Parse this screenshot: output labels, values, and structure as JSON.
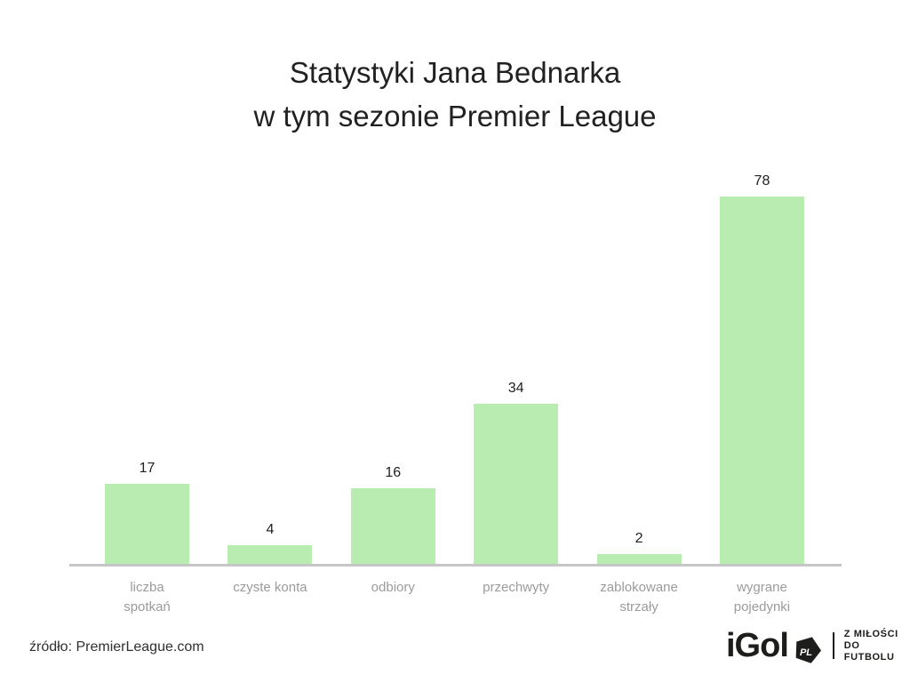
{
  "title": {
    "line1": "Statystyki Jana Bednarka",
    "line2": "w tym sezonie Premier League"
  },
  "source": {
    "text": "źródło: PremierLeague.com"
  },
  "logo": {
    "wordmark": "iGol",
    "badge": "PL",
    "tagline_line1": "Z MIŁOŚCI",
    "tagline_line2": "DO FUTBOLU"
  },
  "colors": {
    "bar": "#b9ecb1",
    "axis": "#c6c6c6",
    "category_label": "#9b9b9b",
    "value_label": "#212121",
    "title": "#212121",
    "logo": "#1d1d1b"
  },
  "chart_data": {
    "type": "bar",
    "title": "Statystyki Jana Bednarka w tym sezonie Premier League",
    "categories": [
      "liczba spotkań",
      "czyste konta",
      "odbiory",
      "przechwyty",
      "zablokowane strzały",
      "wygrane pojedynki"
    ],
    "category_lines": [
      [
        "liczba",
        "spotkań"
      ],
      [
        "czyste konta"
      ],
      [
        "odbiory"
      ],
      [
        "przechwyty"
      ],
      [
        "zablokowane",
        "strzały"
      ],
      [
        "wygrane",
        "pojedynki"
      ]
    ],
    "values": [
      17,
      4,
      16,
      34,
      2,
      78
    ],
    "xlabel": "",
    "ylabel": "",
    "ylim": [
      0,
      80
    ],
    "grid": false,
    "legend": false,
    "bar_color": "#b9ecb1",
    "value_labels_shown": true
  }
}
